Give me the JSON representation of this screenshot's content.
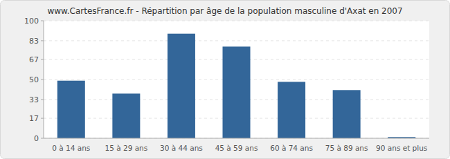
{
  "chart_data": {
    "type": "bar",
    "title": "www.CartesFrance.fr - Répartition par âge de la population masculine d'Axat en 2007",
    "categories": [
      "0 à 14 ans",
      "15 à 29 ans",
      "30 à 44 ans",
      "45 à 59 ans",
      "60 à 74 ans",
      "75 à 89 ans",
      "90 ans et plus"
    ],
    "values": [
      49,
      38,
      89,
      78,
      48,
      41,
      1
    ],
    "color": "#336699",
    "ylim": [
      0,
      100
    ],
    "yticks": [
      0,
      17,
      33,
      50,
      67,
      83,
      100
    ],
    "grid": true
  }
}
